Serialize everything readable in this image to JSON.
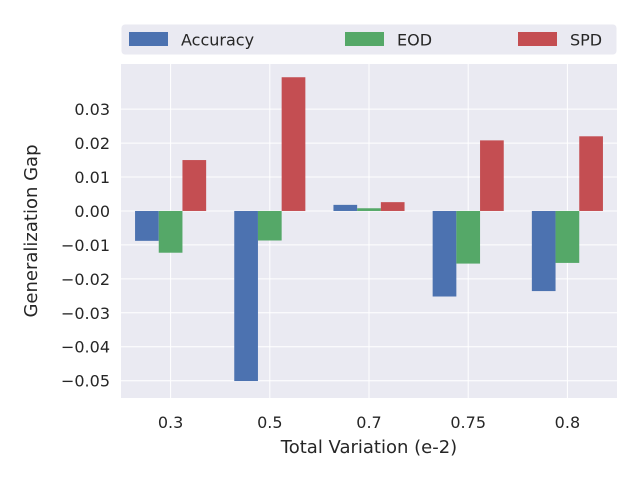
{
  "chart_data": {
    "type": "bar",
    "categories": [
      "0.3",
      "0.5",
      "0.7",
      "0.75",
      "0.8"
    ],
    "series": [
      {
        "name": "Accuracy",
        "values": [
          -0.0088,
          -0.0501,
          0.0018,
          -0.0252,
          -0.0236
        ],
        "color": "#4c72b0"
      },
      {
        "name": "EOD",
        "values": [
          -0.0123,
          -0.0087,
          0.0008,
          -0.0155,
          -0.0153
        ],
        "color": "#55a868"
      },
      {
        "name": "SPD",
        "values": [
          0.015,
          0.0394,
          0.0026,
          0.0208,
          0.022
        ],
        "color": "#c44e52"
      }
    ],
    "xlabel": "Total Variation (e-2)",
    "ylabel": "Generalization Gap",
    "ylim": [
      -0.0551,
      0.0433
    ],
    "yticks": [
      -0.05,
      -0.04,
      -0.03,
      -0.02,
      -0.01,
      0.0,
      0.01,
      0.02,
      0.03
    ],
    "ytick_labels": [
      "−0.05",
      "−0.04",
      "−0.03",
      "−0.02",
      "−0.01",
      "0.00",
      "0.01",
      "0.02",
      "0.03"
    ],
    "grid": true,
    "legend_position": "top",
    "background_color": "#eaeaf2",
    "grid_color": "#ffffff"
  }
}
